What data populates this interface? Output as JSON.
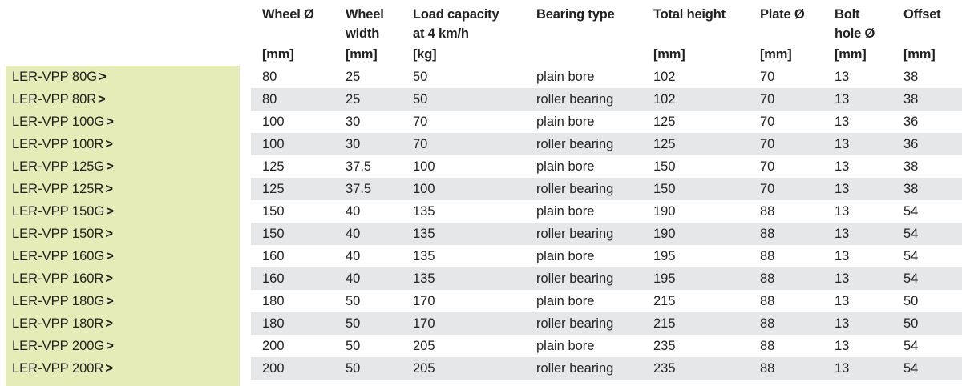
{
  "columns": [
    {
      "key": "wheel",
      "lines": [
        "Wheel Ø"
      ],
      "unit": "[mm]"
    },
    {
      "key": "width",
      "lines": [
        "Wheel",
        "width"
      ],
      "unit": "[mm]"
    },
    {
      "key": "load",
      "lines": [
        "Load capacity",
        "at 4 km/h"
      ],
      "unit": "[kg]"
    },
    {
      "key": "bearing",
      "lines": [
        "Bearing type"
      ],
      "unit": ""
    },
    {
      "key": "height",
      "lines": [
        "Total height"
      ],
      "unit": "[mm]"
    },
    {
      "key": "plate",
      "lines": [
        "Plate Ø"
      ],
      "unit": "[mm]"
    },
    {
      "key": "bolt",
      "lines": [
        "Bolt",
        "hole Ø"
      ],
      "unit": "[mm]"
    },
    {
      "key": "offset",
      "lines": [
        "Offset"
      ],
      "unit": "[mm]"
    }
  ],
  "chevron": ">",
  "rows": [
    {
      "model": "LER-VPP 80G",
      "wheel": "80",
      "width": "25",
      "load": "50",
      "bearing": "plain bore",
      "height": "102",
      "plate": "70",
      "bolt": "13",
      "offset": "38"
    },
    {
      "model": "LER-VPP 80R",
      "wheel": "80",
      "width": "25",
      "load": "50",
      "bearing": "roller bearing",
      "height": "102",
      "plate": "70",
      "bolt": "13",
      "offset": "38"
    },
    {
      "model": "LER-VPP 100G",
      "wheel": "100",
      "width": "30",
      "load": "70",
      "bearing": "plain bore",
      "height": "125",
      "plate": "70",
      "bolt": "13",
      "offset": "36"
    },
    {
      "model": "LER-VPP 100R",
      "wheel": "100",
      "width": "30",
      "load": "70",
      "bearing": "roller bearing",
      "height": "125",
      "plate": "70",
      "bolt": "13",
      "offset": "36"
    },
    {
      "model": "LER-VPP 125G",
      "wheel": "125",
      "width": "37.5",
      "load": "100",
      "bearing": "plain bore",
      "height": "150",
      "plate": "70",
      "bolt": "13",
      "offset": "38"
    },
    {
      "model": "LER-VPP 125R",
      "wheel": "125",
      "width": "37.5",
      "load": "100",
      "bearing": "roller bearing",
      "height": "150",
      "plate": "70",
      "bolt": "13",
      "offset": "38"
    },
    {
      "model": "LER-VPP 150G",
      "wheel": "150",
      "width": "40",
      "load": "135",
      "bearing": "plain bore",
      "height": "190",
      "plate": "88",
      "bolt": "13",
      "offset": "54"
    },
    {
      "model": "LER-VPP 150R",
      "wheel": "150",
      "width": "40",
      "load": "135",
      "bearing": "roller bearing",
      "height": "190",
      "plate": "88",
      "bolt": "13",
      "offset": "54"
    },
    {
      "model": "LER-VPP 160G",
      "wheel": "160",
      "width": "40",
      "load": "135",
      "bearing": "plain bore",
      "height": "195",
      "plate": "88",
      "bolt": "13",
      "offset": "54"
    },
    {
      "model": "LER-VPP 160R",
      "wheel": "160",
      "width": "40",
      "load": "135",
      "bearing": "roller bearing",
      "height": "195",
      "plate": "88",
      "bolt": "13",
      "offset": "54"
    },
    {
      "model": "LER-VPP 180G",
      "wheel": "180",
      "width": "50",
      "load": "170",
      "bearing": "plain bore",
      "height": "215",
      "plate": "88",
      "bolt": "13",
      "offset": "50"
    },
    {
      "model": "LER-VPP 180R",
      "wheel": "180",
      "width": "50",
      "load": "170",
      "bearing": "roller bearing",
      "height": "215",
      "plate": "88",
      "bolt": "13",
      "offset": "50"
    },
    {
      "model": "LER-VPP 200G",
      "wheel": "200",
      "width": "50",
      "load": "205",
      "bearing": "plain bore",
      "height": "235",
      "plate": "88",
      "bolt": "13",
      "offset": "54"
    },
    {
      "model": "LER-VPP 200R",
      "wheel": "200",
      "width": "50",
      "load": "205",
      "bearing": "roller bearing",
      "height": "235",
      "plate": "88",
      "bolt": "13",
      "offset": "54"
    }
  ]
}
